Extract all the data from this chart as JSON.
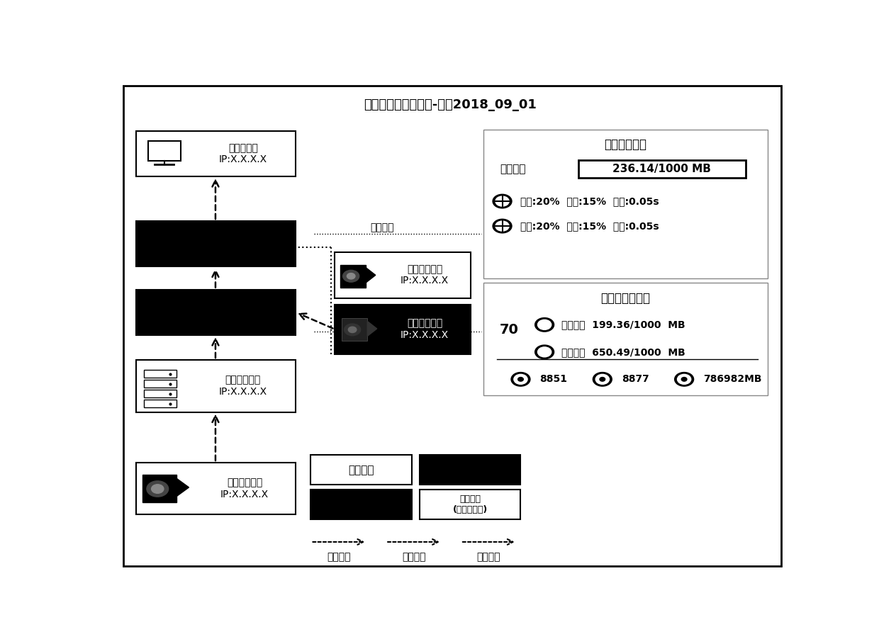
{
  "title": "业务监测与诊断视图-监控2018_09_01",
  "bg_color": "#ffffff",
  "media_title": "媒体流转链路",
  "bandwidth_label": "可用带宽",
  "bandwidth_value": "236.14/1000 MB",
  "media_line1": "抖动:20%  丢包:15%  时延:0.05s",
  "media_line2": "抖动:20%  丢包:15%  时延:0.05s",
  "center_title": "中心与交换信息",
  "center_number": "70",
  "center_line1": "入口带宽  199.36/1000  MB",
  "center_line2": "出口带宽  650.49/1000  MB",
  "center_line3": "8851         8877         786982MB",
  "hover1": "鼠标浮动",
  "hover2": "鼠标浮动",
  "legend_normal": "状态正常",
  "legend_fail": "设备失连\n(断电、损坏)",
  "arrow_label1": "链路正常",
  "arrow_label2": "链路拥塞",
  "arrow_label3": "链路中断",
  "monitor_label": "监控管理员\nIP:X.X.X.X",
  "city_server_label": "市公司服务器\nIP:X.X.X.X",
  "city_camera_label": "市公司摄像头\nIP:X.X.X.X",
  "prov_camera1_label": "省公司摄像头\nIP:X.X.X.X",
  "prov_camera2_label": "省公司摄像头\nIP:X.X.X.X"
}
